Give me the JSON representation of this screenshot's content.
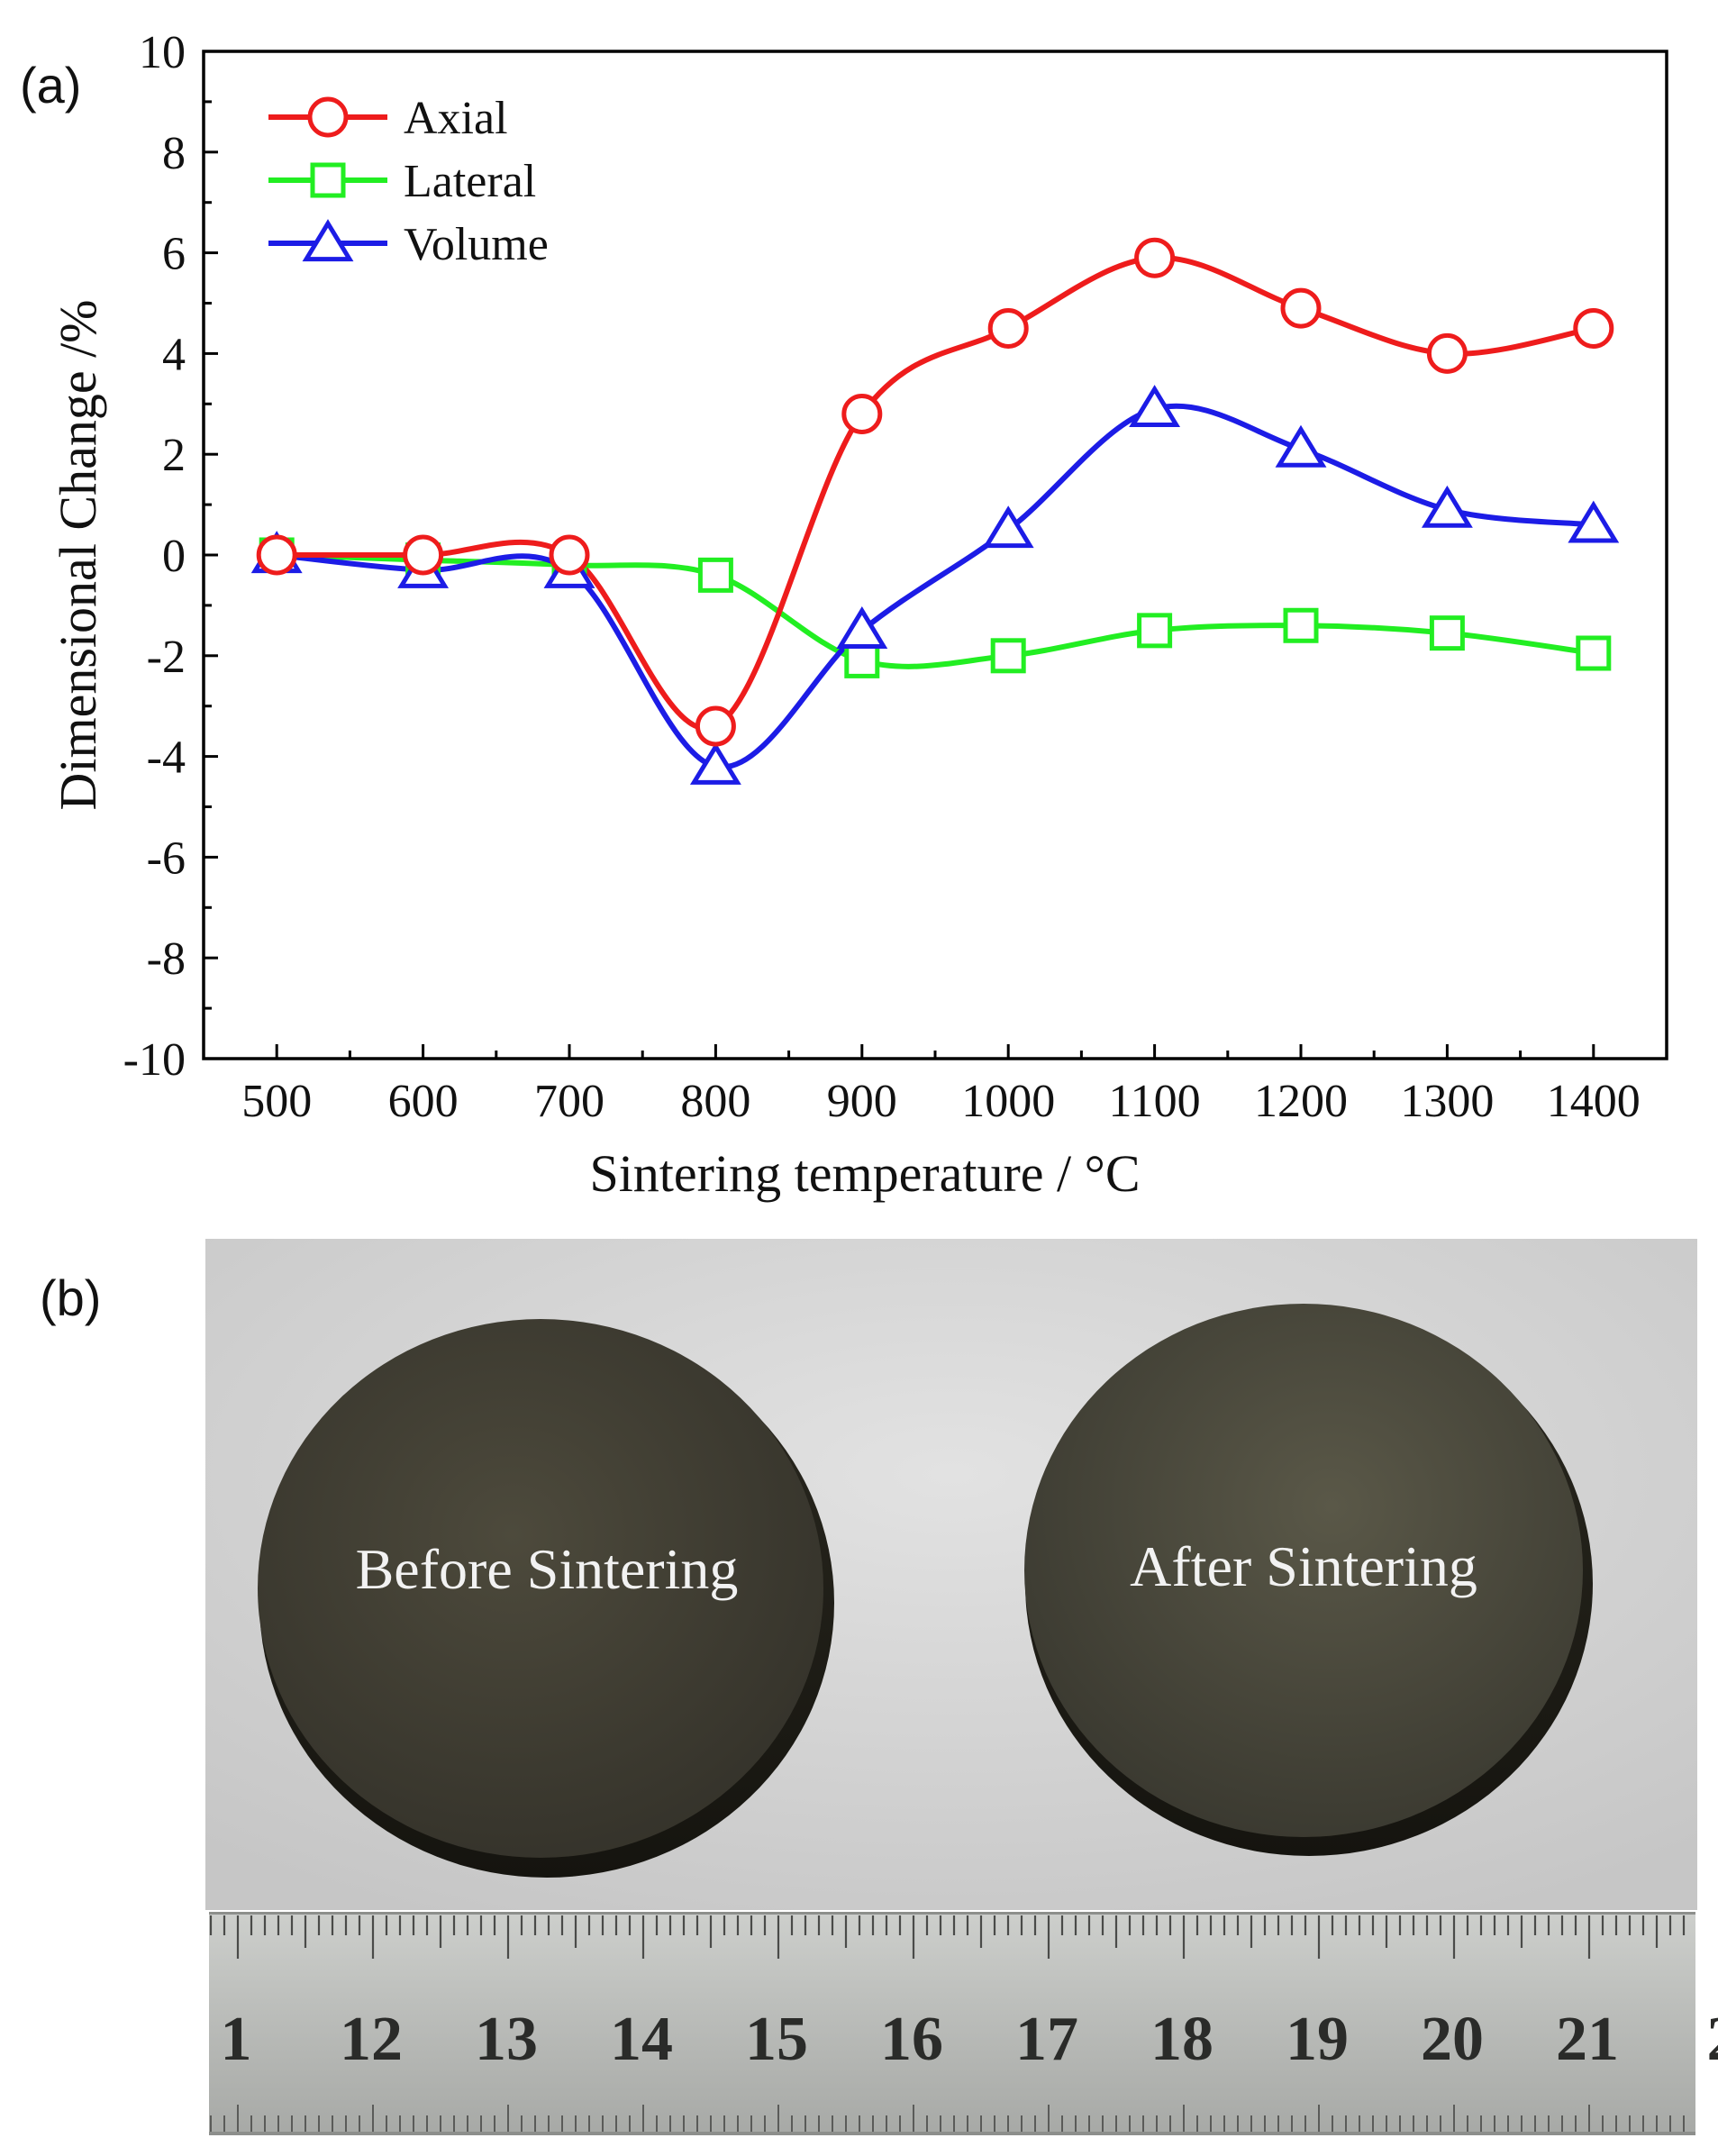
{
  "panel_a_label": "(a)",
  "panel_b_label": "(b)",
  "chart_data": {
    "type": "line",
    "title": "",
    "xlabel": "Sintering temperature / °C",
    "ylabel": "Dimensional Change /%",
    "x": [
      500,
      600,
      700,
      800,
      900,
      1000,
      1100,
      1200,
      1300,
      1400
    ],
    "xlim": [
      450,
      1450
    ],
    "ylim": [
      -10,
      10
    ],
    "xticks": [
      "500",
      "600",
      "700",
      "800",
      "900",
      "1000",
      "1100",
      "1200",
      "1300",
      "1400"
    ],
    "yticks": [
      "10",
      "8",
      "6",
      "4",
      "2",
      "0",
      "-2",
      "-4",
      "-6",
      "-8",
      "-10"
    ],
    "grid": false,
    "legend_position": "top-left",
    "series": [
      {
        "name": "Axial",
        "color": "#ee1c1c",
        "marker": "circle",
        "values": [
          0.0,
          0.0,
          0.0,
          -3.4,
          2.8,
          4.5,
          5.9,
          4.9,
          4.0,
          4.5
        ]
      },
      {
        "name": "Lateral",
        "color": "#22ee22",
        "marker": "square",
        "values": [
          0.0,
          -0.1,
          -0.2,
          -0.4,
          -2.1,
          -2.0,
          -1.5,
          -1.4,
          -1.55,
          -1.95
        ]
      },
      {
        "name": "Volume",
        "color": "#1c1ce6",
        "marker": "triangle",
        "values": [
          0.0,
          -0.3,
          -0.3,
          -4.2,
          -1.5,
          0.5,
          2.9,
          2.1,
          0.9,
          0.6
        ]
      }
    ]
  },
  "photo": {
    "left_label": "Before Sintering",
    "right_label": "After Sintering",
    "ruler_numbers": [
      "1",
      "12",
      "13",
      "14",
      "15",
      "16",
      "17",
      "18",
      "19",
      "20",
      "21",
      "2"
    ]
  }
}
